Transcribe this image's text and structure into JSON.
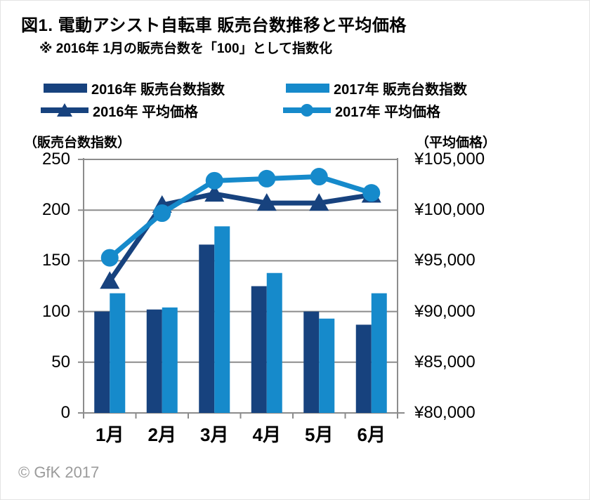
{
  "page": {
    "title": "図1. 電動アシスト自転車 販売台数推移と平均価格",
    "subtitle": "※ 2016年 1月の販売台数を「100」として指数化",
    "footer": "© GfK 2017"
  },
  "legend": {
    "items": [
      {
        "label": "2016年 販売台数指数",
        "type": "bar",
        "color": "#17427E"
      },
      {
        "label": "2017年 販売台数指数",
        "type": "bar",
        "color": "#168ACB"
      },
      {
        "label": "2016年 平均価格",
        "type": "line-triangle",
        "color": "#17427E"
      },
      {
        "label": "2017年 平均価格",
        "type": "line-circle",
        "color": "#168ACB"
      }
    ]
  },
  "chart_data": {
    "type": "combo-bar-line",
    "categories": [
      "1月",
      "2月",
      "3月",
      "4月",
      "5月",
      "6月"
    ],
    "bar_series": [
      {
        "name": "2016年 販売台数指数",
        "color": "#17427E",
        "values": [
          100,
          102,
          166,
          125,
          100,
          87
        ]
      },
      {
        "name": "2017年 販売台数指数",
        "color": "#168ACB",
        "values": [
          118,
          104,
          184,
          138,
          93,
          118
        ]
      }
    ],
    "line_series": [
      {
        "name": "2016年 平均価格",
        "color": "#17427E",
        "marker": "triangle",
        "values_yen": [
          93000,
          100500,
          101600,
          100700,
          100700,
          101500
        ]
      },
      {
        "name": "2017年 平均価格",
        "color": "#168ACB",
        "marker": "circle",
        "values_yen": [
          95300,
          99700,
          102900,
          103100,
          103300,
          101700
        ]
      }
    ],
    "left_axis": {
      "title": "（販売台数指数）",
      "min": 0,
      "max": 250,
      "ticks": [
        250,
        200,
        150,
        100,
        50,
        0
      ]
    },
    "right_axis": {
      "title": "（平均価格）",
      "min": 80000,
      "max": 105000,
      "tick_labels": [
        "¥105,000",
        "¥100,000",
        "¥95,000",
        "¥90,000",
        "¥85,000",
        "¥80,000"
      ],
      "tick_values": [
        105000,
        100000,
        95000,
        90000,
        85000,
        80000
      ]
    },
    "grid": true,
    "axis_color": "#8C8C8C",
    "legend_position": "top"
  }
}
